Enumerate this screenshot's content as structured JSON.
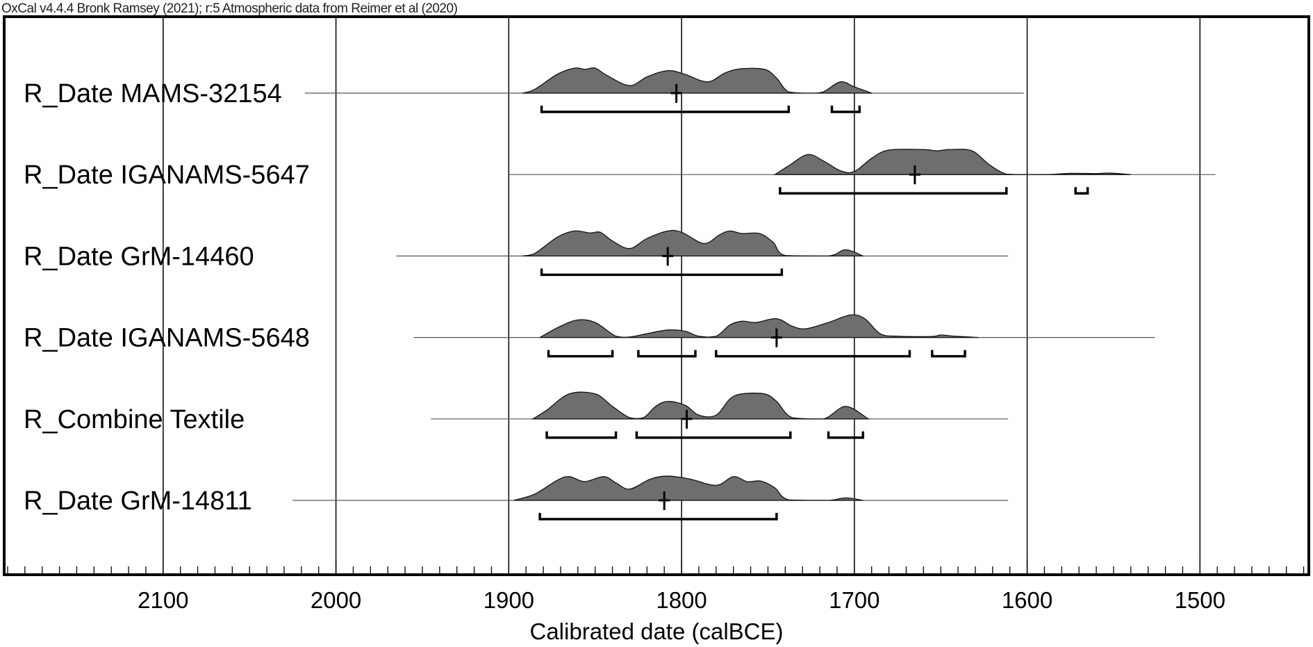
{
  "header": {
    "title": "OxCal v4.4.4 Bronk Ramsey (2021); r:5 Atmospheric data from Reimer et al (2020)"
  },
  "chart_data": {
    "type": "area",
    "xlabel": "Calibrated date (calBCE)",
    "xlim": [
      2192,
      1437
    ],
    "x_reversed": true,
    "xticks": [
      2100,
      2000,
      1900,
      1800,
      1700,
      1600,
      1500
    ],
    "minor_tick_interval": 10,
    "grid": true,
    "fill_color": "#6e6e6e",
    "line_color": "#000000",
    "rows": [
      {
        "label": "R_Date MAMS-32154",
        "line": [
          2018,
          1602
        ],
        "marker": 1803,
        "density": [
          [
            1892,
            0
          ],
          [
            1885,
            0.15
          ],
          [
            1872,
            0.75
          ],
          [
            1862,
            1
          ],
          [
            1856,
            0.95
          ],
          [
            1850,
            1
          ],
          [
            1843,
            0.7
          ],
          [
            1830,
            0.3
          ],
          [
            1820,
            0.65
          ],
          [
            1808,
            0.9
          ],
          [
            1798,
            0.75
          ],
          [
            1785,
            0.45
          ],
          [
            1775,
            0.8
          ],
          [
            1766,
            0.97
          ],
          [
            1752,
            0.95
          ],
          [
            1745,
            0.6
          ],
          [
            1738,
            0.05
          ],
          [
            1725,
            0
          ],
          [
            1718,
            0.05
          ],
          [
            1708,
            0.45
          ],
          [
            1700,
            0.25
          ],
          [
            1690,
            0
          ]
        ],
        "ranges": [
          [
            1881,
            1738
          ],
          [
            1713,
            1697
          ]
        ]
      },
      {
        "label": "R_Date IGANAMS-5647",
        "line": [
          1900,
          1491
        ],
        "marker": 1665,
        "density": [
          [
            1746,
            0
          ],
          [
            1738,
            0.35
          ],
          [
            1727,
            0.8
          ],
          [
            1718,
            0.55
          ],
          [
            1708,
            0.15
          ],
          [
            1700,
            0.12
          ],
          [
            1690,
            0.65
          ],
          [
            1680,
            0.98
          ],
          [
            1660,
            1
          ],
          [
            1652,
            0.95
          ],
          [
            1645,
            1
          ],
          [
            1632,
            0.95
          ],
          [
            1622,
            0.4
          ],
          [
            1612,
            0.02
          ],
          [
            1600,
            0
          ],
          [
            1585,
            0.01
          ],
          [
            1575,
            0.05
          ],
          [
            1560,
            0.04
          ],
          [
            1552,
            0.06
          ],
          [
            1540,
            0
          ]
        ],
        "ranges": [
          [
            1743,
            1612
          ],
          [
            1572,
            1565
          ]
        ]
      },
      {
        "label": "R_Date GrM-14460",
        "line": [
          1965,
          1611
        ],
        "marker": 1808,
        "density": [
          [
            1892,
            0
          ],
          [
            1885,
            0.1
          ],
          [
            1872,
            0.75
          ],
          [
            1862,
            1
          ],
          [
            1853,
            0.92
          ],
          [
            1847,
            0.95
          ],
          [
            1840,
            0.6
          ],
          [
            1830,
            0.3
          ],
          [
            1820,
            0.7
          ],
          [
            1808,
            1
          ],
          [
            1800,
            0.95
          ],
          [
            1787,
            0.5
          ],
          [
            1778,
            0.85
          ],
          [
            1772,
            1
          ],
          [
            1765,
            0.9
          ],
          [
            1755,
            0.9
          ],
          [
            1747,
            0.55
          ],
          [
            1740,
            0.02
          ],
          [
            1715,
            0
          ],
          [
            1705,
            0.25
          ],
          [
            1695,
            0
          ]
        ],
        "ranges": [
          [
            1881,
            1742
          ]
        ]
      },
      {
        "label": "R_Date IGANAMS-5648",
        "line": [
          1955,
          1526
        ],
        "marker": 1745,
        "density": [
          [
            1882,
            0
          ],
          [
            1870,
            0.45
          ],
          [
            1860,
            0.7
          ],
          [
            1850,
            0.6
          ],
          [
            1838,
            0.05
          ],
          [
            1830,
            0.02
          ],
          [
            1820,
            0.15
          ],
          [
            1808,
            0.3
          ],
          [
            1798,
            0.25
          ],
          [
            1790,
            0.05
          ],
          [
            1780,
            0.05
          ],
          [
            1772,
            0.5
          ],
          [
            1765,
            0.65
          ],
          [
            1757,
            0.6
          ],
          [
            1745,
            0.75
          ],
          [
            1736,
            0.45
          ],
          [
            1728,
            0.35
          ],
          [
            1715,
            0.6
          ],
          [
            1702,
            0.9
          ],
          [
            1694,
            0.75
          ],
          [
            1685,
            0.15
          ],
          [
            1675,
            0.05
          ],
          [
            1655,
            0.04
          ],
          [
            1650,
            0.1
          ],
          [
            1642,
            0.05
          ],
          [
            1628,
            0
          ]
        ],
        "ranges": [
          [
            1877,
            1840
          ],
          [
            1825,
            1792
          ],
          [
            1780,
            1668
          ],
          [
            1655,
            1636
          ]
        ]
      },
      {
        "label": "R_Combine Textile",
        "line": [
          1945,
          1611
        ],
        "marker": 1797,
        "density": [
          [
            1886,
            0
          ],
          [
            1878,
            0.35
          ],
          [
            1865,
            1
          ],
          [
            1850,
            1
          ],
          [
            1840,
            0.5
          ],
          [
            1830,
            0.05
          ],
          [
            1822,
            0.05
          ],
          [
            1815,
            0.5
          ],
          [
            1808,
            0.7
          ],
          [
            1798,
            0.55
          ],
          [
            1790,
            0.15
          ],
          [
            1780,
            0.15
          ],
          [
            1772,
            0.8
          ],
          [
            1765,
            1
          ],
          [
            1752,
            1
          ],
          [
            1745,
            0.7
          ],
          [
            1736,
            0.05
          ],
          [
            1718,
            0
          ],
          [
            1705,
            0.5
          ],
          [
            1692,
            0
          ]
        ],
        "ranges": [
          [
            1878,
            1838
          ],
          [
            1826,
            1737
          ],
          [
            1715,
            1695
          ]
        ]
      },
      {
        "label": "R_Date GrM-14811",
        "line": [
          2025,
          1611
        ],
        "marker": 1810,
        "density": [
          [
            1897,
            0
          ],
          [
            1885,
            0.25
          ],
          [
            1872,
            0.8
          ],
          [
            1865,
            0.95
          ],
          [
            1856,
            0.75
          ],
          [
            1845,
            0.95
          ],
          [
            1838,
            0.7
          ],
          [
            1830,
            0.45
          ],
          [
            1818,
            0.85
          ],
          [
            1808,
            0.97
          ],
          [
            1795,
            0.85
          ],
          [
            1780,
            0.6
          ],
          [
            1770,
            0.95
          ],
          [
            1762,
            0.75
          ],
          [
            1754,
            0.77
          ],
          [
            1746,
            0.5
          ],
          [
            1738,
            0.02
          ],
          [
            1715,
            0
          ],
          [
            1705,
            0.1
          ],
          [
            1695,
            0
          ]
        ],
        "ranges": [
          [
            1882,
            1745
          ]
        ]
      }
    ]
  }
}
